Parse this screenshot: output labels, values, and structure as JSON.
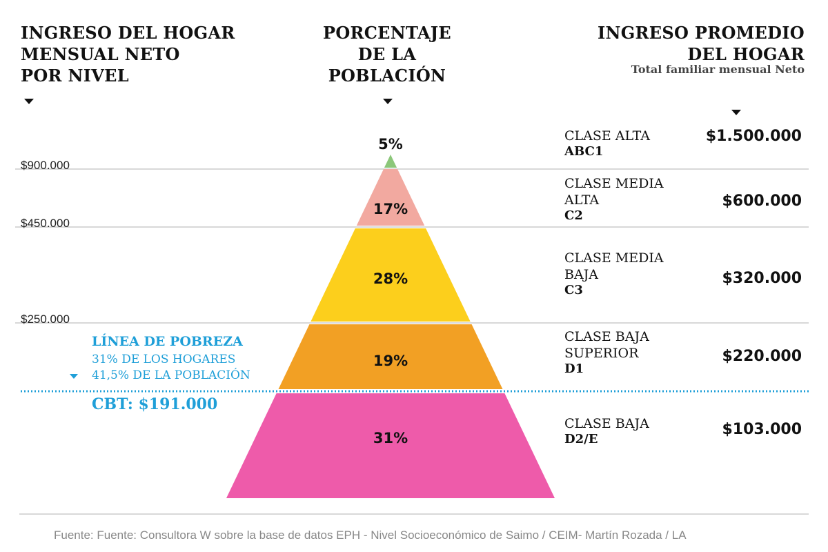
{
  "headers": {
    "left": [
      "INGRESO DEL HOGAR",
      "MENSUAL NETO",
      "POR NIVEL"
    ],
    "center": [
      "PORCENTAJE",
      "DE LA",
      "POBLACIÓN"
    ],
    "right": [
      "INGRESO PROMEDIO",
      "DEL HOGAR"
    ],
    "right_sub": "Total familiar mensual Neto"
  },
  "income_thresholds": [
    "$900.000",
    "$450.000",
    "$250.000"
  ],
  "poverty": {
    "title": "LÍNEA DE POBREZA",
    "households": "31% DE LOS HOGARES",
    "population": "41,5% DE LA POBLACIÓN",
    "cbt": "CBT: $191.000"
  },
  "colors": {
    "abc1": "#8cc77a",
    "c2": "#f2a9a0",
    "c3": "#fccf1c",
    "d1": "#f2a024",
    "d2e": "#ee5baa",
    "poverty_line": "#1f9fd8",
    "separator": "#cccccc"
  },
  "chart_data": {
    "type": "pyramid",
    "levels": [
      {
        "class_name": [
          "CLASE ALTA"
        ],
        "code": "ABC1",
        "percent_label": "5%",
        "percent": 5,
        "avg_income": "$1.500.000",
        "avg_income_value": 1500000
      },
      {
        "class_name": [
          "CLASE MEDIA",
          "ALTA"
        ],
        "code": "C2",
        "percent_label": "17%",
        "percent": 17,
        "avg_income": "$600.000",
        "avg_income_value": 600000
      },
      {
        "class_name": [
          "CLASE MEDIA",
          "BAJA"
        ],
        "code": "C3",
        "percent_label": "28%",
        "percent": 28,
        "avg_income": "$320.000",
        "avg_income_value": 320000
      },
      {
        "class_name": [
          "CLASE BAJA",
          "SUPERIOR"
        ],
        "code": "D1",
        "percent_label": "19%",
        "percent": 19,
        "avg_income": "$220.000",
        "avg_income_value": 220000
      },
      {
        "class_name": [
          "CLASE BAJA"
        ],
        "code": "D2/E",
        "percent_label": "31%",
        "percent": 31,
        "avg_income": "$103.000",
        "avg_income_value": 103000
      }
    ]
  },
  "source": "Fuente: Fuente: Consultora W sobre la base de datos EPH - Nivel Socioeconómico de Saimo / CEIM- Martín Rozada / LA"
}
